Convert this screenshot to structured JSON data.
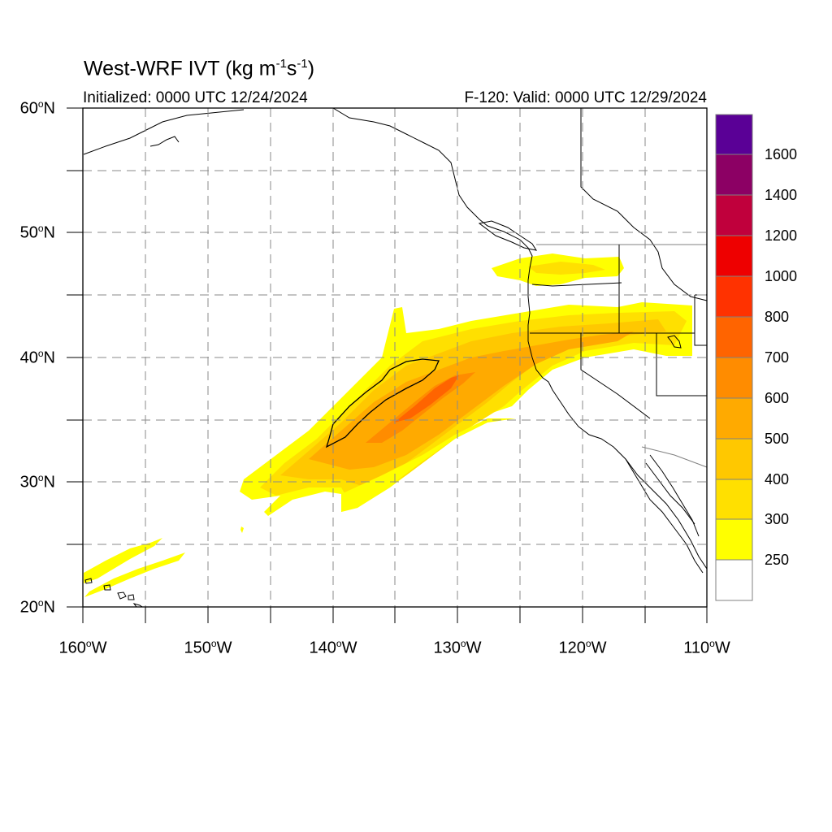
{
  "header": {
    "title_main": "West-WRF IVT (kg m",
    "title_exp1": "-1",
    "title_mid": "s",
    "title_exp2": "-1",
    "title_end": ")",
    "initialized": "Initialized: 0000 UTC 12/24/2024",
    "valid": "F-120: Valid: 0000 UTC 12/29/2024"
  },
  "axes": {
    "lat_labels": [
      "20",
      "30",
      "40",
      "50",
      "60"
    ],
    "lat_suffix": "N",
    "lon_labels": [
      "160",
      "150",
      "140",
      "130",
      "120",
      "110"
    ],
    "lon_suffix": "W",
    "degree_mark": "o",
    "lat_range": [
      20,
      60
    ],
    "lon_range": [
      -160,
      -110
    ],
    "grid": "dashed gray every 5 degrees"
  },
  "colorbar": {
    "labels": [
      "250",
      "300",
      "400",
      "500",
      "600",
      "700",
      "800",
      "1000",
      "1200",
      "1400",
      "1600"
    ],
    "colors": [
      "#ffffff",
      "#ffff00",
      "#ffe000",
      "#ffc800",
      "#ffaa00",
      "#ff8c00",
      "#ff6400",
      "#ff3200",
      "#ee0000",
      "#c0003c",
      "#8c0064",
      "#5a0096"
    ]
  }
}
